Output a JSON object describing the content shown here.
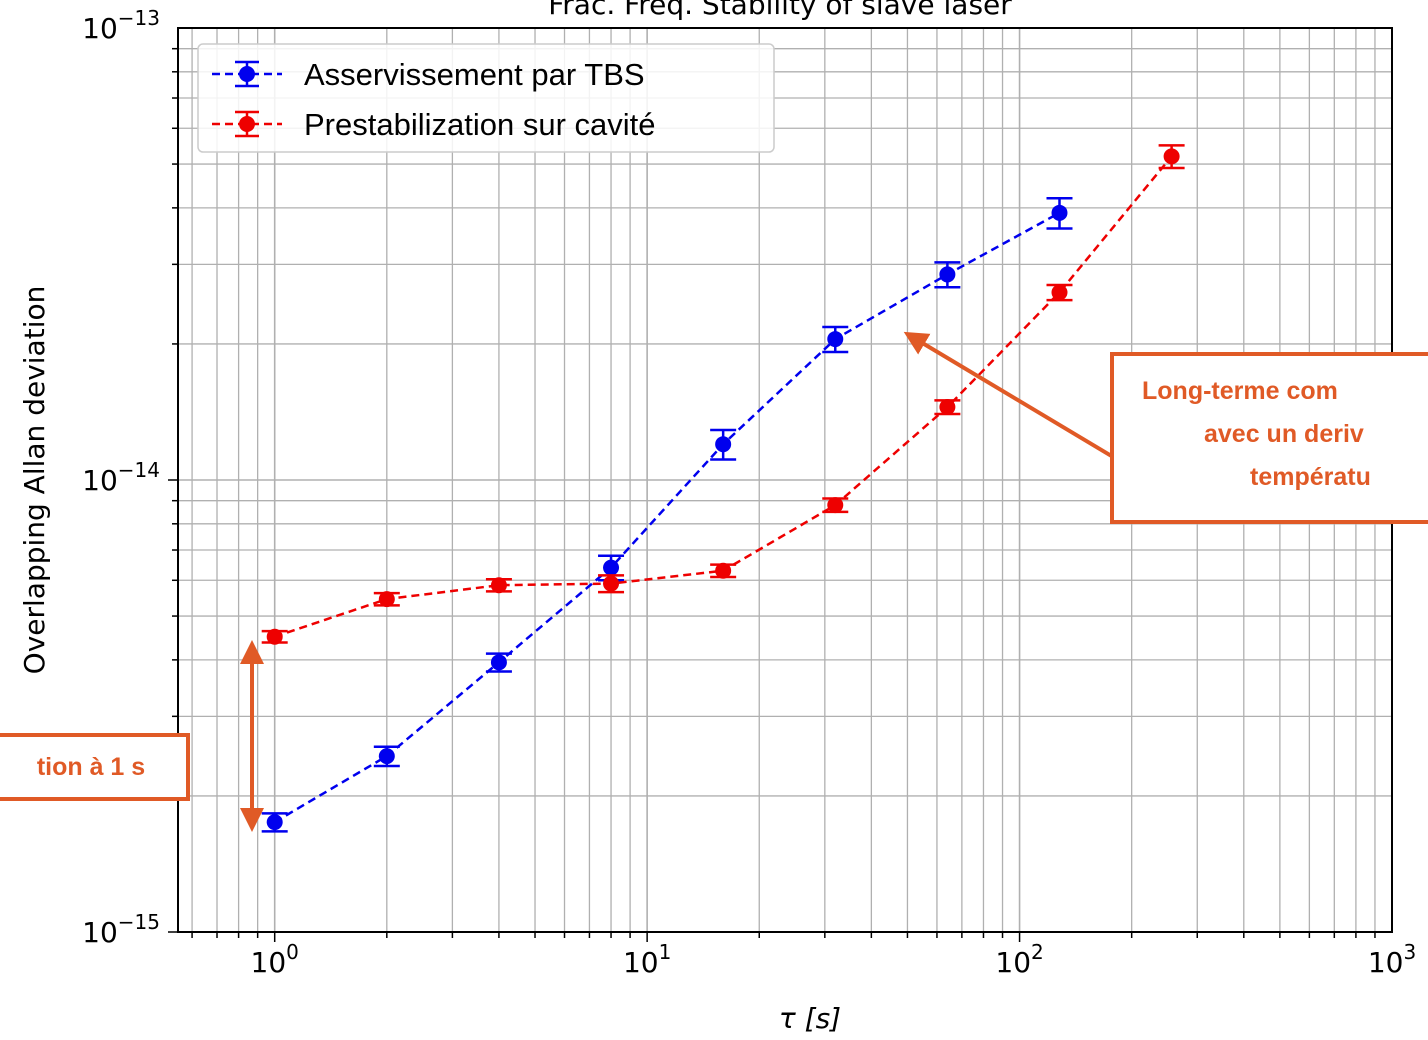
{
  "chart_data": {
    "type": "line",
    "title": "Frac. Freq. Stability of slave laser",
    "xlabel": "τ [s]",
    "ylabel": "Overlapping Allan deviation",
    "xscale": "log",
    "yscale": "log",
    "xlim": [
      0.55,
      1000
    ],
    "ylim": [
      1e-15,
      1e-13
    ],
    "grid": true,
    "legend_position": "top-left",
    "x_tick_labels": [
      {
        "base": "10",
        "exp": "0",
        "value": 1
      },
      {
        "base": "10",
        "exp": "1",
        "value": 10
      },
      {
        "base": "10",
        "exp": "2",
        "value": 100
      },
      {
        "base": "10",
        "exp": "3",
        "value": 1000
      }
    ],
    "y_tick_labels": [
      {
        "base": "10",
        "exp": "−15",
        "value": 1e-15
      },
      {
        "base": "10",
        "exp": "−14",
        "value": 1e-14
      },
      {
        "base": "10",
        "exp": "−13",
        "value": 1e-13
      }
    ],
    "series": [
      {
        "name": "Asservissement par TBS",
        "color": "#0000ee",
        "x": [
          1,
          2,
          4,
          8,
          16,
          32,
          64,
          128
        ],
        "y": [
          1.75e-15,
          2.45e-15,
          3.95e-15,
          6.4e-15,
          1.2e-14,
          2.05e-14,
          2.85e-14,
          3.9e-14
        ],
        "err": [
          8e-17,
          1.2e-16,
          1.8e-16,
          4e-16,
          9e-16,
          1.3e-15,
          1.8e-15,
          3e-15
        ]
      },
      {
        "name": "Prestabilization sur cavité",
        "color": "#ee0000",
        "x": [
          1,
          2,
          4,
          8,
          16,
          32,
          64,
          128,
          256
        ],
        "y": [
          4.5e-15,
          5.45e-15,
          5.85e-15,
          5.9e-15,
          6.3e-15,
          8.8e-15,
          1.45e-14,
          2.6e-14,
          5.2e-14
        ],
        "err": [
          1.3e-16,
          1.7e-16,
          1.8e-16,
          2.5e-16,
          2e-16,
          3e-16,
          5e-16,
          1e-15,
          3e-15
        ]
      }
    ],
    "annotations": [
      {
        "text": "tion à 1 s"
      },
      {
        "lines": [
          "Long-terme com",
          "avec un deriv",
          "températu"
        ]
      }
    ],
    "annotation_color": "#e05a26"
  }
}
